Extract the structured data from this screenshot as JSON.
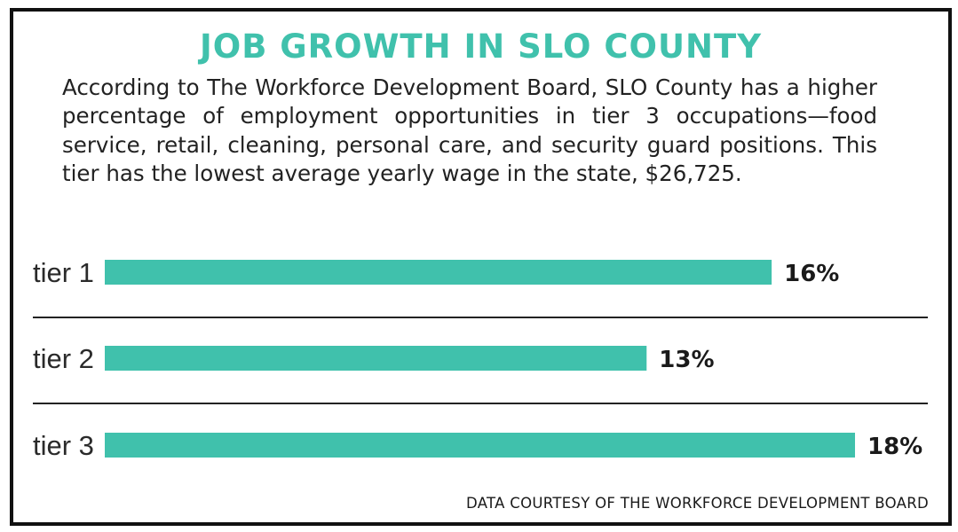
{
  "title": "JOB GROWTH IN SLO COUNTY",
  "description": "According to The Workforce Development Board, SLO County has a higher percentage of employment opportunities in tier 3 occupations—food service, retail, cleaning, personal care, and security guard positions. This tier has the lowest average yearly wage in the state, $26,725.",
  "source": "DATA COURTESY OF THE WORKFORCE DEVELOPMENT BOARD",
  "colors": {
    "bar": "#40c1ac",
    "title": "#40c1ac",
    "border": "#111111",
    "divider": "#222222"
  },
  "chart_data": {
    "type": "bar",
    "orientation": "horizontal",
    "categories": [
      "tier 1",
      "tier 2",
      "tier 3"
    ],
    "values": [
      16,
      13,
      18
    ],
    "value_labels": [
      "16%",
      "13%",
      "18%"
    ],
    "xlim": [
      0,
      18
    ],
    "grid": false,
    "legend": "none"
  }
}
